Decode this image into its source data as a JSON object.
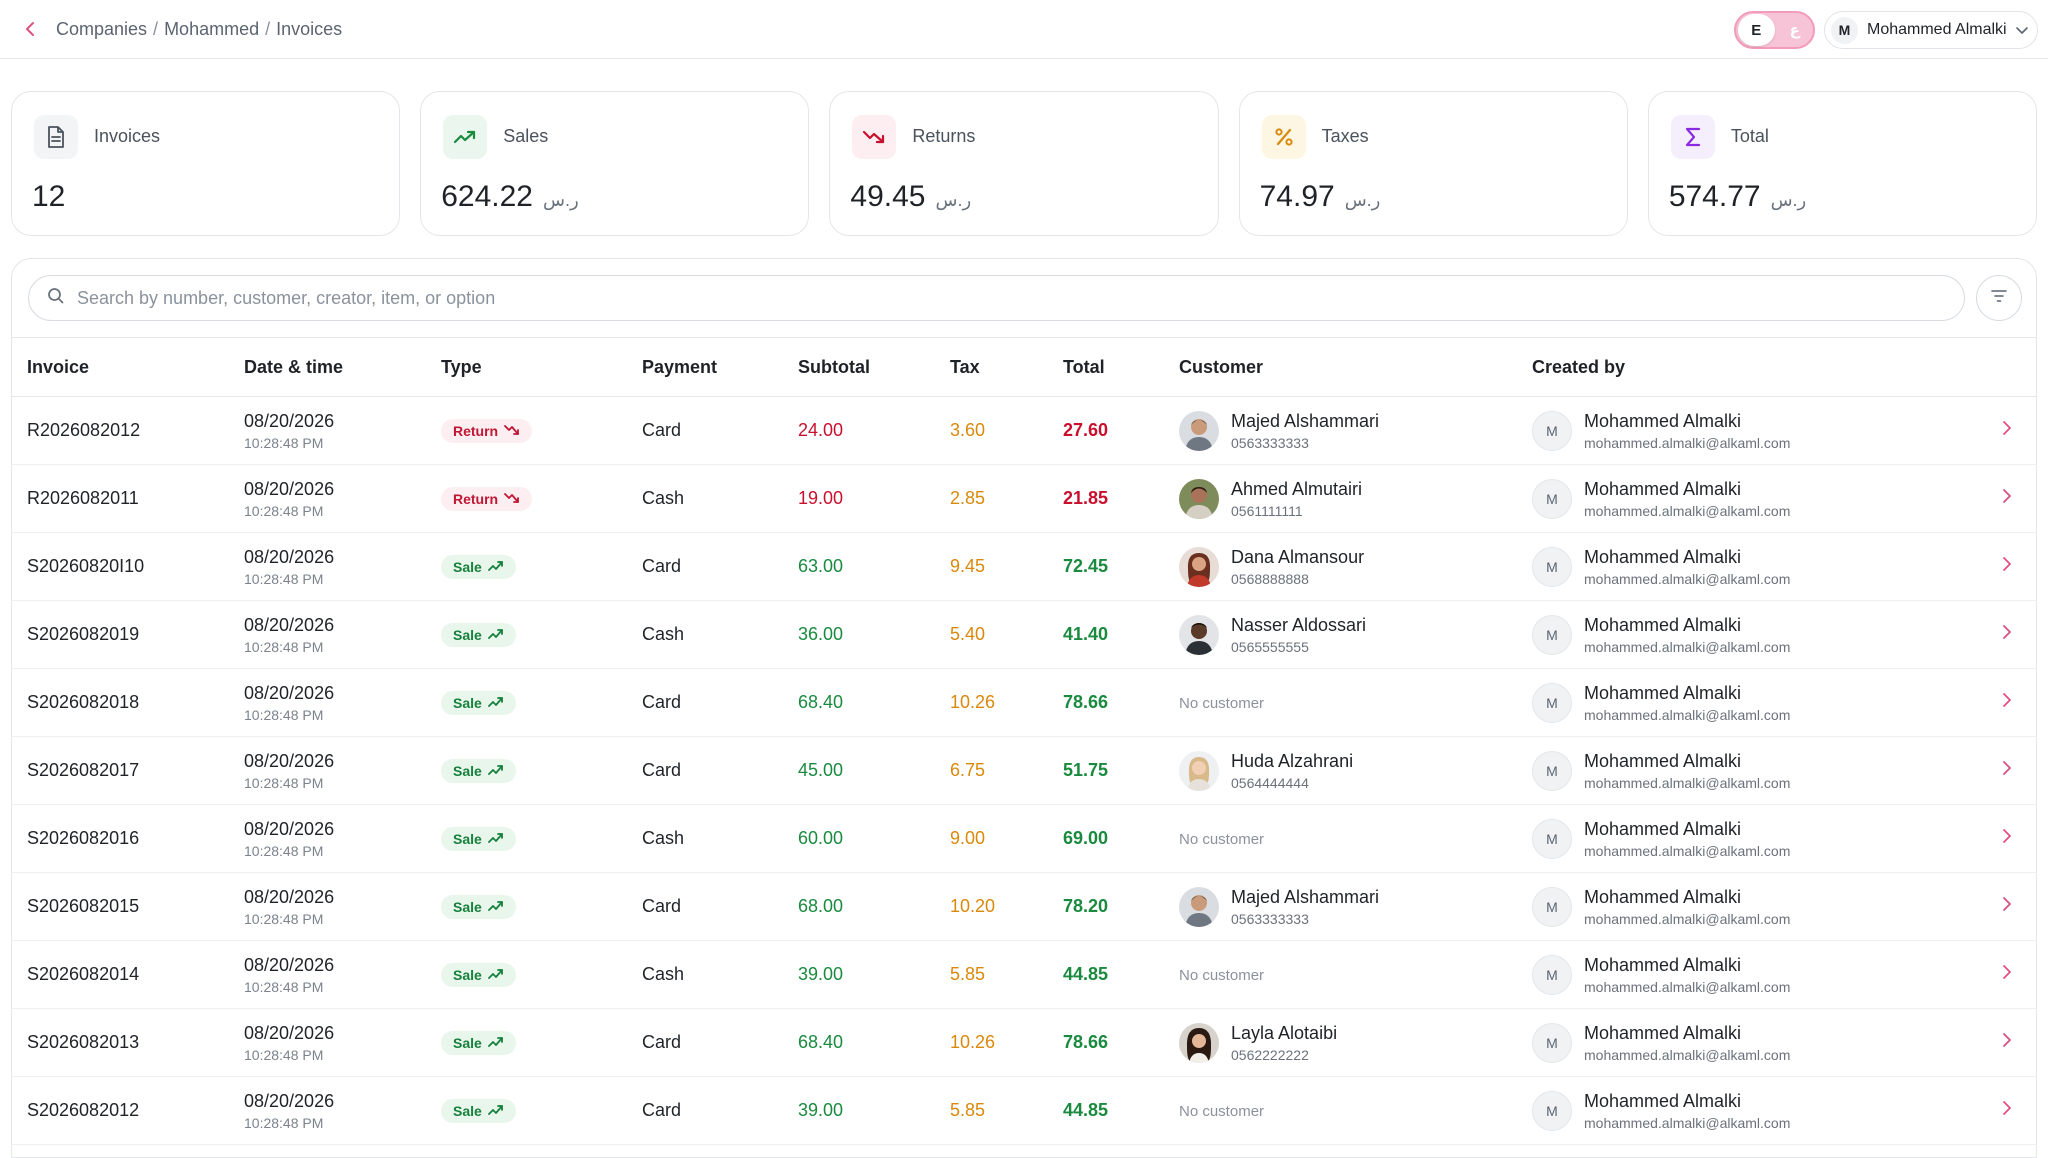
{
  "header": {
    "breadcrumb": [
      "Companies",
      "Mohammed",
      "Invoices"
    ],
    "breadcrumb_sep": "/",
    "lang_active": "E",
    "lang_inactive": "ع",
    "user_initial": "M",
    "user_name": "Mohammed Almalki"
  },
  "stats": [
    {
      "label": "Invoices",
      "value": "12",
      "currency": "",
      "icon": "document-icon",
      "color": "#4a525c",
      "bg": "#f3f4f6"
    },
    {
      "label": "Sales",
      "value": "624.22",
      "currency": "ر.س",
      "icon": "trend-up-icon",
      "color": "#1a8a3f",
      "bg": "#eaf6ee"
    },
    {
      "label": "Returns",
      "value": "49.45",
      "currency": "ر.س",
      "icon": "trend-down-icon",
      "color": "#c8102e",
      "bg": "#fdeef1"
    },
    {
      "label": "Taxes",
      "value": "74.97",
      "currency": "ر.س",
      "icon": "percent-icon",
      "color": "#d9890b",
      "bg": "#fdf6e3"
    },
    {
      "label": "Total",
      "value": "574.77",
      "currency": "ر.س",
      "icon": "sigma-icon",
      "color": "#8a2be2",
      "bg": "#f5eefc"
    }
  ],
  "search": {
    "placeholder": "Search by number, customer, creator, item, or option"
  },
  "table": {
    "columns": [
      "Invoice",
      "Date & time",
      "Type",
      "Payment",
      "Subtotal",
      "Tax",
      "Total",
      "Customer",
      "Created by"
    ],
    "rows": [
      {
        "invoice": "R2026082012",
        "date": "08/20/2026",
        "time": "10:28:48 PM",
        "type": "Return",
        "payment": "Card",
        "subtotal": "24.00",
        "tax": "3.60",
        "total": "27.60",
        "customer_name": "Majed Alshammari",
        "customer_phone": "0563333333",
        "customer_avatar": "photo-majed",
        "creator_initial": "M",
        "creator_name": "Mohammed Almalki",
        "creator_email": "mohammed.almalki@alkaml.com"
      },
      {
        "invoice": "R2026082011",
        "date": "08/20/2026",
        "time": "10:28:48 PM",
        "type": "Return",
        "payment": "Cash",
        "subtotal": "19.00",
        "tax": "2.85",
        "total": "21.85",
        "customer_name": "Ahmed Almutairi",
        "customer_phone": "0561111111",
        "customer_avatar": "photo-ahmed",
        "creator_initial": "M",
        "creator_name": "Mohammed Almalki",
        "creator_email": "mohammed.almalki@alkaml.com"
      },
      {
        "invoice": "S20260820I10",
        "date": "08/20/2026",
        "time": "10:28:48 PM",
        "type": "Sale",
        "payment": "Card",
        "subtotal": "63.00",
        "tax": "9.45",
        "total": "72.45",
        "customer_name": "Dana Almansour",
        "customer_phone": "0568888888",
        "customer_avatar": "photo-dana",
        "creator_initial": "M",
        "creator_name": "Mohammed Almalki",
        "creator_email": "mohammed.almalki@alkaml.com"
      },
      {
        "invoice": "S2026082019",
        "date": "08/20/2026",
        "time": "10:28:48 PM",
        "type": "Sale",
        "payment": "Cash",
        "subtotal": "36.00",
        "tax": "5.40",
        "total": "41.40",
        "customer_name": "Nasser Aldossari",
        "customer_phone": "0565555555",
        "customer_avatar": "photo-nasser",
        "creator_initial": "M",
        "creator_name": "Mohammed Almalki",
        "creator_email": "mohammed.almalki@alkaml.com"
      },
      {
        "invoice": "S2026082018",
        "date": "08/20/2026",
        "time": "10:28:48 PM",
        "type": "Sale",
        "payment": "Card",
        "subtotal": "68.40",
        "tax": "10.26",
        "total": "78.66",
        "customer_name": "",
        "customer_phone": "",
        "customer_avatar": "",
        "no_customer": "No customer",
        "creator_initial": "M",
        "creator_name": "Mohammed Almalki",
        "creator_email": "mohammed.almalki@alkaml.com"
      },
      {
        "invoice": "S2026082017",
        "date": "08/20/2026",
        "time": "10:28:48 PM",
        "type": "Sale",
        "payment": "Card",
        "subtotal": "45.00",
        "tax": "6.75",
        "total": "51.75",
        "customer_name": "Huda Alzahrani",
        "customer_phone": "0564444444",
        "customer_avatar": "photo-huda",
        "creator_initial": "M",
        "creator_name": "Mohammed Almalki",
        "creator_email": "mohammed.almalki@alkaml.com"
      },
      {
        "invoice": "S2026082016",
        "date": "08/20/2026",
        "time": "10:28:48 PM",
        "type": "Sale",
        "payment": "Cash",
        "subtotal": "60.00",
        "tax": "9.00",
        "total": "69.00",
        "customer_name": "",
        "customer_phone": "",
        "customer_avatar": "",
        "no_customer": "No customer",
        "creator_initial": "M",
        "creator_name": "Mohammed Almalki",
        "creator_email": "mohammed.almalki@alkaml.com"
      },
      {
        "invoice": "S2026082015",
        "date": "08/20/2026",
        "time": "10:28:48 PM",
        "type": "Sale",
        "payment": "Card",
        "subtotal": "68.00",
        "tax": "10.20",
        "total": "78.20",
        "customer_name": "Majed Alshammari",
        "customer_phone": "0563333333",
        "customer_avatar": "photo-majed",
        "creator_initial": "M",
        "creator_name": "Mohammed Almalki",
        "creator_email": "mohammed.almalki@alkaml.com"
      },
      {
        "invoice": "S2026082014",
        "date": "08/20/2026",
        "time": "10:28:48 PM",
        "type": "Sale",
        "payment": "Cash",
        "subtotal": "39.00",
        "tax": "5.85",
        "total": "44.85",
        "customer_name": "",
        "customer_phone": "",
        "customer_avatar": "",
        "no_customer": "No customer",
        "creator_initial": "M",
        "creator_name": "Mohammed Almalki",
        "creator_email": "mohammed.almalki@alkaml.com"
      },
      {
        "invoice": "S2026082013",
        "date": "08/20/2026",
        "time": "10:28:48 PM",
        "type": "Sale",
        "payment": "Card",
        "subtotal": "68.40",
        "tax": "10.26",
        "total": "78.66",
        "customer_name": "Layla Alotaibi",
        "customer_phone": "0562222222",
        "customer_avatar": "photo-layla",
        "creator_initial": "M",
        "creator_name": "Mohammed Almalki",
        "creator_email": "mohammed.almalki@alkaml.com"
      },
      {
        "invoice": "S2026082012",
        "date": "08/20/2026",
        "time": "10:28:48 PM",
        "type": "Sale",
        "payment": "Card",
        "subtotal": "39.00",
        "tax": "5.85",
        "total": "44.85",
        "customer_name": "",
        "customer_phone": "",
        "customer_avatar": "",
        "no_customer": "No customer",
        "creator_initial": "M",
        "creator_name": "Mohammed Almalki",
        "creator_email": "mohammed.almalki@alkaml.com"
      }
    ]
  },
  "colors": {
    "accent_pink": "#f39bbb",
    "return_red": "#c8102e",
    "sale_green": "#1a8a3f",
    "tax_amber": "#d9890b",
    "chevron_pink": "#e0527e"
  }
}
